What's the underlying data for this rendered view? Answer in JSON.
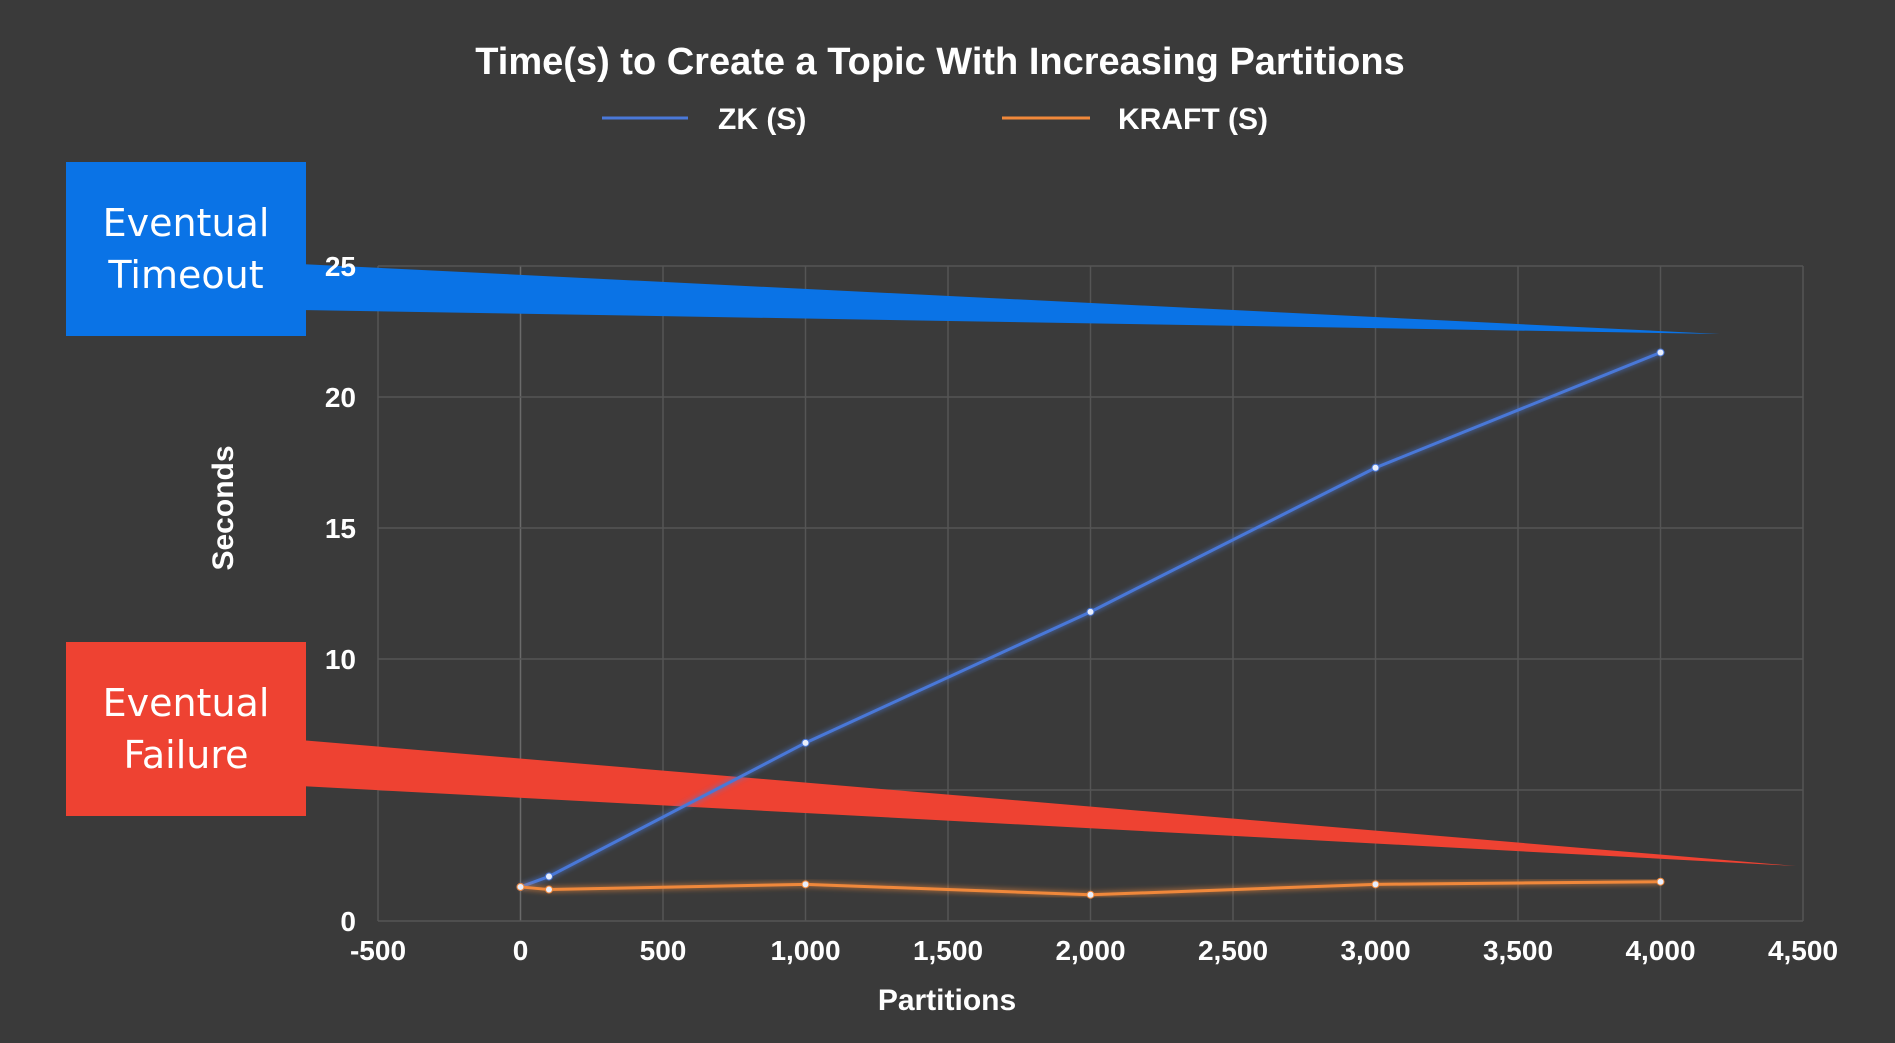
{
  "chart_data": {
    "type": "line",
    "title": "Time(s) to Create a Topic With Increasing Partitions",
    "xlabel": "Partitions",
    "ylabel": "Seconds",
    "xlim": [
      -500,
      4500
    ],
    "ylim": [
      0,
      25
    ],
    "x_ticks": [
      "-500",
      "0",
      "500",
      "1,000",
      "1,500",
      "2,000",
      "2,500",
      "3,000",
      "3,500",
      "4,000",
      "4,500"
    ],
    "y_ticks": [
      "0",
      "10",
      "15",
      "20",
      "25"
    ],
    "grid": true,
    "legend_position": "top",
    "series": [
      {
        "name": "ZK (S)",
        "color": "#4a78d8",
        "points": [
          [
            0,
            1.3
          ],
          [
            100,
            1.7
          ],
          [
            1000,
            6.8
          ],
          [
            2000,
            11.8
          ],
          [
            3000,
            17.3
          ],
          [
            4000,
            21.7
          ]
        ]
      },
      {
        "name": "KRAFT (S)",
        "color": "#f0883a",
        "points": [
          [
            0,
            1.3
          ],
          [
            100,
            1.2
          ],
          [
            1000,
            1.4
          ],
          [
            2000,
            1.0
          ],
          [
            3000,
            1.4
          ],
          [
            4000,
            1.5
          ]
        ]
      }
    ]
  },
  "callouts": {
    "timeout": {
      "line1": "Eventual",
      "line2": "Timeout",
      "color": "#0a73e6"
    },
    "failure": {
      "line1": "Eventual",
      "line2": "Failure",
      "color": "#ee4232"
    }
  }
}
